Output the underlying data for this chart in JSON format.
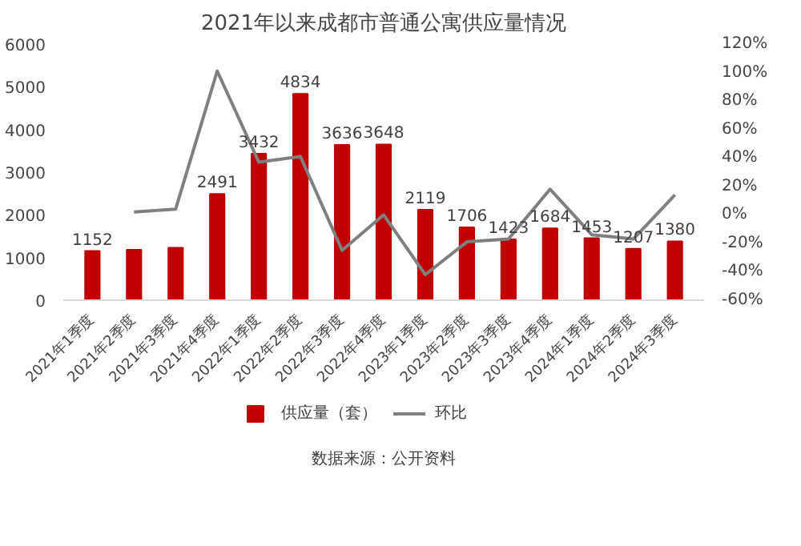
{
  "chart_data": {
    "type": "bar",
    "title": "2021年以来成都市普通公寓供应量情况",
    "categories": [
      "2021年1季度",
      "2021年2季度",
      "2021年3季度",
      "2021年4季度",
      "2022年1季度",
      "2022年2季度",
      "2022年3季度",
      "2022年4季度",
      "2023年1季度",
      "2023年2季度",
      "2023年3季度",
      "2023年4季度",
      "2024年1季度",
      "2024年2季度",
      "2024年3季度"
    ],
    "series": [
      {
        "name": "供应量（套）",
        "color": "#c00000",
        "values": [
          1152,
          1180,
          1230,
          2491,
          3432,
          4834,
          3636,
          3648,
          2119,
          1706,
          1423,
          1684,
          1453,
          1207,
          1380
        ],
        "value_labels": [
          "1152",
          null,
          null,
          "2491",
          "3432",
          "4834",
          "3636",
          "3648",
          "2119",
          "1706",
          "1423",
          "1684",
          "1453",
          "1207",
          "1380"
        ]
      },
      {
        "name": "环比",
        "type": "line",
        "axis": "y2",
        "color": "#7f7f7f",
        "values": [
          null,
          2,
          4,
          101,
          37,
          41,
          -25,
          0,
          -42,
          -19,
          -17,
          18,
          -14,
          -17,
          14
        ]
      }
    ],
    "ylim": [
      0,
      6000
    ],
    "yticks": [
      0,
      1000,
      2000,
      3000,
      4000,
      5000,
      6000
    ],
    "y2lim": [
      -60,
      120
    ],
    "y2ticks": [
      {
        "value": -60,
        "label": "-60%"
      },
      {
        "value": -40,
        "label": "-40%"
      },
      {
        "value": -20,
        "label": "-20%"
      },
      {
        "value": 0,
        "label": "0%"
      },
      {
        "value": 20,
        "label": "20%"
      },
      {
        "value": 40,
        "label": "40%"
      },
      {
        "value": 60,
        "label": "60%"
      },
      {
        "value": 80,
        "label": "80%"
      },
      {
        "value": 100,
        "label": "100%"
      },
      {
        "value": 120,
        "label": "120%"
      }
    ],
    "grid": false,
    "legend": "bottom",
    "line_style": "solid",
    "marker": "none",
    "annotations": [
      "数据来源：公开资料"
    ]
  }
}
